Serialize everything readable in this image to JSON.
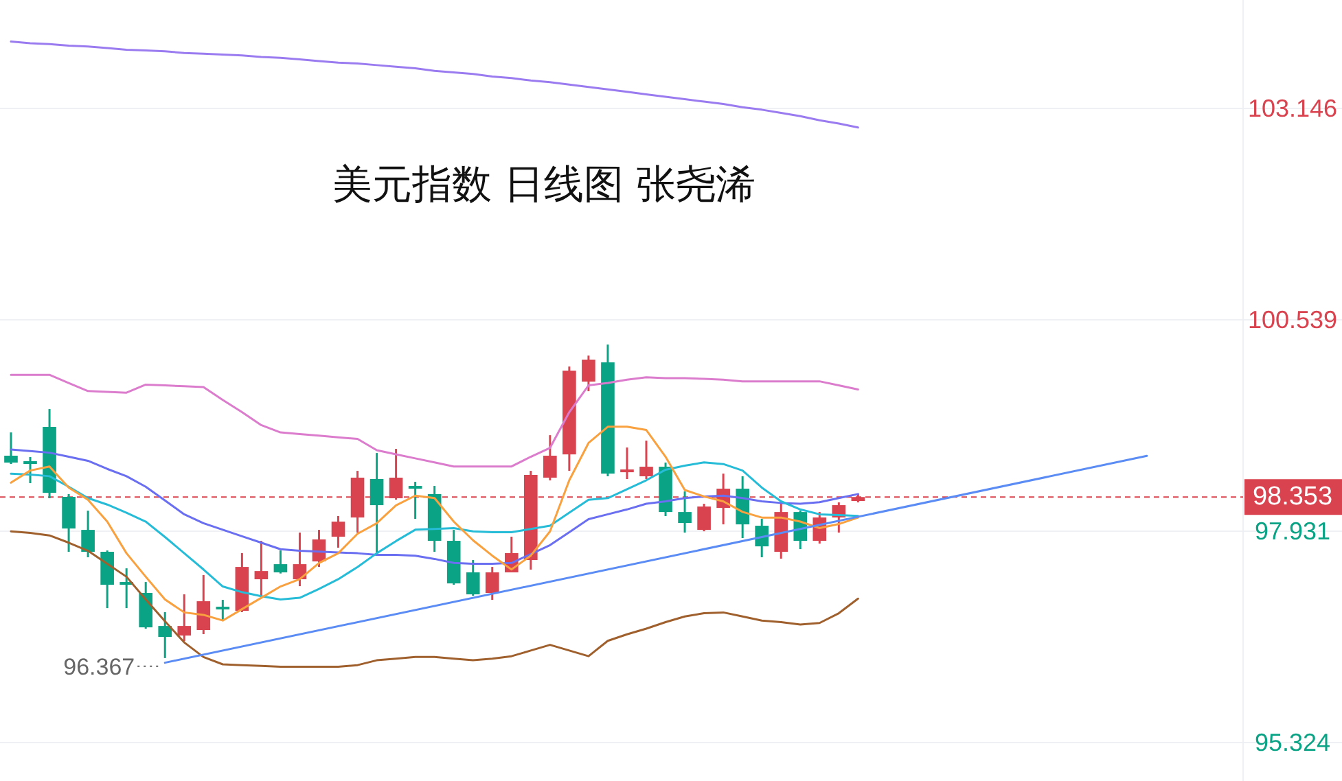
{
  "chart_data": {
    "type": "candlestick",
    "title": "美元指数 日线图 张尧浠",
    "categories": [
      null,
      null,
      null,
      null,
      null,
      null,
      null,
      null,
      null,
      null,
      null,
      null,
      null,
      null,
      null,
      null,
      null,
      null,
      null,
      null,
      null,
      null,
      null,
      null,
      null,
      null,
      null,
      null,
      null,
      null,
      null,
      null,
      null,
      null,
      null,
      null,
      null,
      null,
      null,
      null,
      null,
      null,
      null,
      null,
      null,
      null,
      null,
      null,
      null,
      null,
      null,
      null,
      null,
      null,
      null,
      null,
      null,
      null,
      null,
      null
    ],
    "ohlc": [
      [
        98.863,
        99.15,
        98.761,
        98.778
      ],
      [
        98.795,
        98.846,
        98.524,
        98.761
      ],
      [
        99.218,
        99.438,
        98.338,
        98.405
      ],
      [
        98.355,
        98.389,
        97.678,
        97.965
      ],
      [
        97.948,
        98.185,
        97.61,
        97.678
      ],
      [
        97.678,
        97.694,
        96.983,
        97.271
      ],
      [
        97.305,
        97.474,
        96.983,
        97.271
      ],
      [
        97.17,
        97.305,
        96.729,
        96.746
      ],
      [
        96.763,
        96.933,
        96.367,
        96.628
      ],
      [
        96.645,
        97.153,
        96.577,
        96.763
      ],
      [
        96.713,
        97.39,
        96.662,
        97.068
      ],
      [
        97.0,
        97.085,
        96.831,
        96.967
      ],
      [
        96.95,
        97.661,
        96.933,
        97.491
      ],
      [
        97.339,
        97.813,
        97.136,
        97.44
      ],
      [
        97.525,
        97.694,
        97.41,
        97.424
      ],
      [
        97.339,
        97.915,
        97.254,
        97.525
      ],
      [
        97.559,
        97.948,
        97.491,
        97.83
      ],
      [
        97.864,
        98.118,
        97.728,
        98.05
      ],
      [
        98.101,
        98.676,
        97.915,
        98.592
      ],
      [
        98.575,
        98.896,
        97.661,
        98.253
      ],
      [
        98.338,
        98.947,
        98.321,
        98.592
      ],
      [
        98.49,
        98.541,
        98.084,
        98.456
      ],
      [
        98.389,
        98.49,
        97.678,
        97.813
      ],
      [
        97.813,
        97.948,
        97.271,
        97.288
      ],
      [
        97.424,
        97.576,
        97.136,
        97.153
      ],
      [
        97.17,
        97.491,
        97.085,
        97.424
      ],
      [
        97.424,
        97.864,
        97.424,
        97.661
      ],
      [
        97.576,
        98.676,
        97.458,
        98.626
      ],
      [
        98.592,
        99.116,
        98.558,
        98.863
      ],
      [
        98.879,
        99.963,
        98.676,
        99.912
      ],
      [
        99.777,
        100.098,
        99.658,
        100.048
      ],
      [
        100.014,
        100.234,
        98.609,
        98.642
      ],
      [
        98.659,
        98.964,
        98.575,
        98.693
      ],
      [
        98.609,
        99.049,
        98.575,
        98.727
      ],
      [
        98.727,
        98.778,
        98.118,
        98.168
      ],
      [
        98.168,
        98.422,
        97.915,
        98.033
      ],
      [
        97.948,
        98.27,
        97.931,
        98.236
      ],
      [
        98.219,
        98.642,
        98.016,
        98.456
      ],
      [
        98.456,
        98.609,
        97.847,
        98.016
      ],
      [
        97.999,
        98.084,
        97.61,
        97.745
      ],
      [
        97.678,
        98.27,
        97.593,
        98.168
      ],
      [
        98.168,
        98.185,
        97.711,
        97.813
      ],
      [
        97.813,
        98.168,
        97.779,
        98.101
      ],
      [
        98.101,
        98.287,
        97.915,
        98.253
      ],
      [
        98.304,
        98.389,
        98.287,
        98.353
      ],
      null,
      null,
      null,
      null,
      null,
      null,
      null,
      null,
      null,
      null,
      null,
      null,
      null,
      null,
      null
    ],
    "series": [
      {
        "type": "line",
        "color": "#9b7cf0",
        "values": [
          103.97,
          103.95,
          103.94,
          103.92,
          103.91,
          103.89,
          103.87,
          103.86,
          103.85,
          103.83,
          103.82,
          103.81,
          103.8,
          103.78,
          103.77,
          103.75,
          103.73,
          103.71,
          103.7,
          103.68,
          103.66,
          103.64,
          103.61,
          103.59,
          103.57,
          103.54,
          103.52,
          103.49,
          103.47,
          103.44,
          103.41,
          103.38,
          103.35,
          103.32,
          103.29,
          103.26,
          103.23,
          103.2,
          103.16,
          103.13,
          103.09,
          103.05,
          103.0,
          102.96,
          102.91,
          null,
          null,
          null,
          null,
          null,
          null,
          null,
          null,
          null,
          null,
          null,
          null,
          null,
          null,
          null
        ]
      },
      {
        "type": "line",
        "color": "#dc7ccd",
        "values": [
          99.86,
          99.86,
          99.86,
          99.76,
          99.66,
          99.65,
          99.64,
          99.74,
          99.73,
          99.72,
          99.71,
          99.55,
          99.4,
          99.24,
          99.15,
          99.13,
          99.11,
          99.09,
          99.07,
          98.93,
          98.88,
          98.83,
          98.78,
          98.73,
          98.73,
          98.73,
          98.73,
          98.85,
          98.96,
          99.4,
          99.73,
          99.76,
          99.8,
          99.83,
          99.82,
          99.82,
          99.81,
          99.8,
          99.78,
          99.78,
          99.78,
          99.78,
          99.78,
          99.73,
          99.68,
          null,
          null,
          null,
          null,
          null,
          null,
          null,
          null,
          null,
          null,
          null,
          null,
          null,
          null,
          null
        ]
      },
      {
        "type": "line",
        "color": "#a0602d",
        "values": [
          97.93,
          97.91,
          97.88,
          97.79,
          97.69,
          97.53,
          97.37,
          97.09,
          96.82,
          96.56,
          96.38,
          96.29,
          96.28,
          96.27,
          96.26,
          96.26,
          96.26,
          96.26,
          96.28,
          96.34,
          96.36,
          96.38,
          96.38,
          96.36,
          96.34,
          96.36,
          96.39,
          96.46,
          96.53,
          96.46,
          96.39,
          96.58,
          96.66,
          96.73,
          96.81,
          96.88,
          96.92,
          96.93,
          96.88,
          96.83,
          96.81,
          96.78,
          96.8,
          96.92,
          97.1,
          null,
          null,
          null,
          null,
          null,
          null,
          null,
          null,
          null,
          null,
          null,
          null,
          null,
          null,
          null
        ]
      },
      {
        "type": "line",
        "color": "#6a6ef0",
        "values": [
          98.94,
          98.92,
          98.9,
          98.85,
          98.8,
          98.7,
          98.61,
          98.48,
          98.31,
          98.14,
          98.03,
          97.95,
          97.87,
          97.79,
          97.71,
          97.69,
          97.68,
          97.67,
          97.66,
          97.64,
          97.64,
          97.63,
          97.59,
          97.54,
          97.53,
          97.53,
          97.54,
          97.65,
          97.76,
          97.92,
          98.08,
          98.14,
          98.2,
          98.27,
          98.3,
          98.34,
          98.36,
          98.37,
          98.34,
          98.3,
          98.28,
          98.27,
          98.29,
          98.34,
          98.39,
          null,
          null,
          null,
          null,
          null,
          null,
          null,
          null,
          null,
          null,
          null,
          null,
          null,
          null,
          null
        ]
      },
      {
        "type": "line",
        "color": "#26bcd7",
        "values": [
          98.64,
          98.63,
          98.61,
          98.48,
          98.34,
          98.26,
          98.16,
          98.05,
          97.86,
          97.66,
          97.46,
          97.25,
          97.18,
          97.13,
          97.09,
          97.11,
          97.22,
          97.34,
          97.49,
          97.66,
          97.81,
          97.95,
          97.96,
          97.97,
          97.93,
          97.92,
          97.92,
          97.96,
          98.0,
          98.16,
          98.32,
          98.34,
          98.45,
          98.56,
          98.69,
          98.74,
          98.78,
          98.76,
          98.68,
          98.47,
          98.3,
          98.2,
          98.14,
          98.13,
          98.12,
          null,
          null,
          null,
          null,
          null,
          null,
          null,
          null,
          null,
          null,
          null,
          null,
          null,
          null,
          null
        ]
      },
      {
        "type": "line",
        "color": "#f9a03f",
        "values": [
          98.53,
          98.68,
          98.73,
          98.47,
          98.32,
          98.05,
          97.66,
          97.37,
          97.09,
          96.93,
          96.9,
          96.83,
          96.97,
          97.11,
          97.25,
          97.34,
          97.54,
          97.66,
          97.9,
          98.03,
          98.25,
          98.37,
          98.34,
          98.05,
          97.82,
          97.63,
          97.46,
          97.63,
          97.93,
          98.56,
          99.02,
          99.22,
          99.22,
          99.18,
          98.85,
          98.44,
          98.36,
          98.3,
          98.17,
          98.1,
          98.1,
          98.05,
          97.97,
          98.02,
          98.1,
          null,
          null,
          null,
          null,
          null,
          null,
          null,
          null,
          null,
          null,
          null,
          null,
          null,
          null,
          null
        ]
      },
      {
        "type": "line",
        "color": "#5b8cf5",
        "values": [
          null,
          null,
          null,
          null,
          null,
          null,
          null,
          null,
          96.31,
          null,
          null,
          null,
          null,
          null,
          null,
          null,
          null,
          null,
          null,
          null,
          null,
          null,
          null,
          null,
          null,
          null,
          null,
          null,
          null,
          null,
          null,
          null,
          null,
          null,
          null,
          null,
          null,
          null,
          null,
          null,
          null,
          null,
          null,
          null,
          null,
          null,
          null,
          null,
          null,
          null,
          null,
          null,
          null,
          null,
          null,
          null,
          null,
          null,
          null,
          98.86
        ]
      }
    ],
    "ylim": [
      94.851,
      104.483
    ],
    "yticks": [
      95.324,
      97.931,
      100.539,
      103.146
    ],
    "grid": "y",
    "tick_labels": "y",
    "ref_lines": [
      {
        "axis": "y",
        "value": 98.353,
        "label": "98.353",
        "color": "#d9434f",
        "line_style": "dashed"
      }
    ],
    "annotations": [
      "96.367"
    ]
  }
}
